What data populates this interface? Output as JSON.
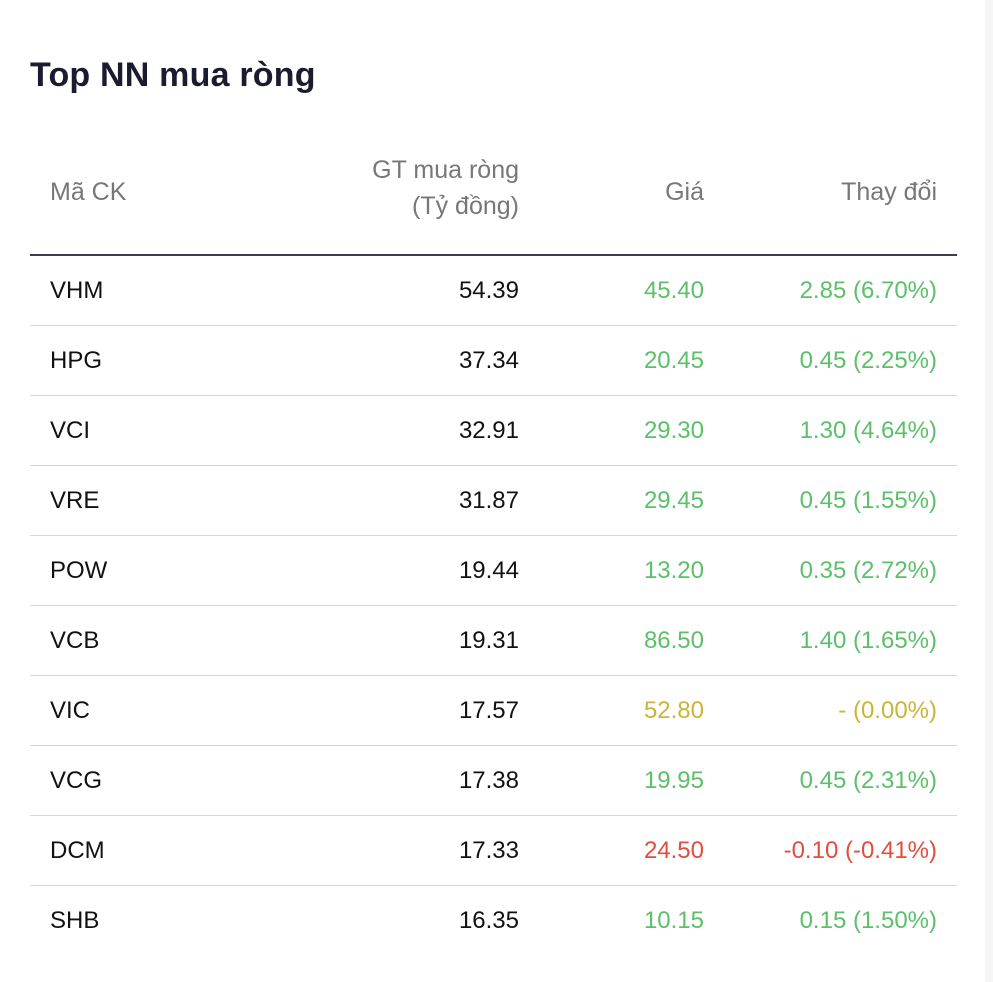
{
  "title": "Top NN mua ròng",
  "columns": {
    "code": "Mã CK",
    "value_line1": "GT mua ròng",
    "value_line2": "(Tỷ đồng)",
    "price": "Giá",
    "change": "Thay đổi"
  },
  "colors": {
    "up": "#5cbf6a",
    "reference": "#c9b53a",
    "down": "#e04e3e"
  },
  "rows": [
    {
      "code": "VHM",
      "value": "54.39",
      "price": "45.40",
      "change": "2.85 (6.70%)",
      "trend": "up"
    },
    {
      "code": "HPG",
      "value": "37.34",
      "price": "20.45",
      "change": "0.45 (2.25%)",
      "trend": "up"
    },
    {
      "code": "VCI",
      "value": "32.91",
      "price": "29.30",
      "change": "1.30 (4.64%)",
      "trend": "up"
    },
    {
      "code": "VRE",
      "value": "31.87",
      "price": "29.45",
      "change": "0.45 (1.55%)",
      "trend": "up"
    },
    {
      "code": "POW",
      "value": "19.44",
      "price": "13.20",
      "change": "0.35 (2.72%)",
      "trend": "up"
    },
    {
      "code": "VCB",
      "value": "19.31",
      "price": "86.50",
      "change": "1.40 (1.65%)",
      "trend": "up"
    },
    {
      "code": "VIC",
      "value": "17.57",
      "price": "52.80",
      "change": "- (0.00%)",
      "trend": "ref"
    },
    {
      "code": "VCG",
      "value": "17.38",
      "price": "19.95",
      "change": "0.45 (2.31%)",
      "trend": "up"
    },
    {
      "code": "DCM",
      "value": "17.33",
      "price": "24.50",
      "change": "-0.10 (-0.41%)",
      "trend": "down"
    },
    {
      "code": "SHB",
      "value": "16.35",
      "price": "10.15",
      "change": "0.15 (1.50%)",
      "trend": "up"
    }
  ]
}
